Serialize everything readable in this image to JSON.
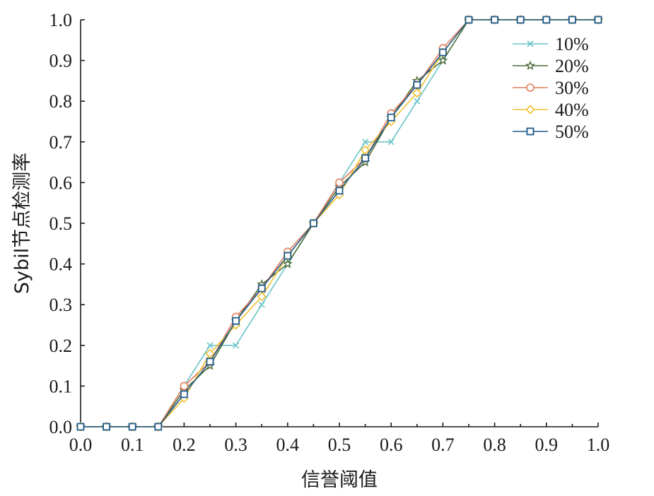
{
  "chart_data": {
    "type": "line",
    "title": "",
    "xlabel": "信誉阈值",
    "ylabel": "Sybil节点检测率",
    "xlim": [
      0,
      1
    ],
    "ylim": [
      0,
      1
    ],
    "x_ticks": [
      "0.0",
      "0.1",
      "0.2",
      "0.3",
      "0.4",
      "0.5",
      "0.6",
      "0.7",
      "0.8",
      "0.9",
      "1.0"
    ],
    "y_ticks": [
      "0.0",
      "0.1",
      "0.2",
      "0.3",
      "0.4",
      "0.5",
      "0.6",
      "0.7",
      "0.8",
      "0.9",
      "1.0"
    ],
    "grid": false,
    "legend_position": "top-right",
    "x": [
      0.0,
      0.05,
      0.1,
      0.15,
      0.2,
      0.25,
      0.3,
      0.35,
      0.4,
      0.45,
      0.5,
      0.55,
      0.6,
      0.65,
      0.7,
      0.75,
      0.8,
      0.85,
      0.9,
      0.95,
      1.0
    ],
    "series": [
      {
        "name": "10%",
        "color": "#6cc3c8",
        "marker": "x",
        "values": [
          0,
          0,
          0,
          0,
          0.1,
          0.2,
          0.2,
          0.3,
          0.4,
          0.5,
          0.6,
          0.7,
          0.7,
          0.8,
          0.9,
          1,
          1,
          1,
          1,
          1,
          1
        ]
      },
      {
        "name": "20%",
        "color": "#4d6b3a",
        "marker": "star",
        "values": [
          0,
          0,
          0,
          0,
          0.09,
          0.15,
          0.26,
          0.35,
          0.4,
          0.5,
          0.59,
          0.65,
          0.76,
          0.85,
          0.9,
          1,
          1,
          1,
          1,
          1,
          1
        ]
      },
      {
        "name": "30%",
        "color": "#e07d5c",
        "marker": "circle",
        "values": [
          0,
          0,
          0,
          0,
          0.1,
          0.16,
          0.27,
          0.34,
          0.43,
          0.5,
          0.6,
          0.66,
          0.77,
          0.84,
          0.93,
          1,
          1,
          1,
          1,
          1,
          1
        ]
      },
      {
        "name": "40%",
        "color": "#f0c030",
        "marker": "diamond",
        "values": [
          0,
          0,
          0,
          0,
          0.07,
          0.18,
          0.25,
          0.32,
          0.42,
          0.5,
          0.57,
          0.68,
          0.75,
          0.82,
          0.92,
          1,
          1,
          1,
          1,
          1,
          1
        ]
      },
      {
        "name": "50%",
        "color": "#1f5a8a",
        "marker": "square",
        "values": [
          0,
          0,
          0,
          0,
          0.08,
          0.16,
          0.26,
          0.34,
          0.42,
          0.5,
          0.58,
          0.66,
          0.76,
          0.84,
          0.92,
          1,
          1,
          1,
          1,
          1,
          1
        ]
      }
    ]
  }
}
